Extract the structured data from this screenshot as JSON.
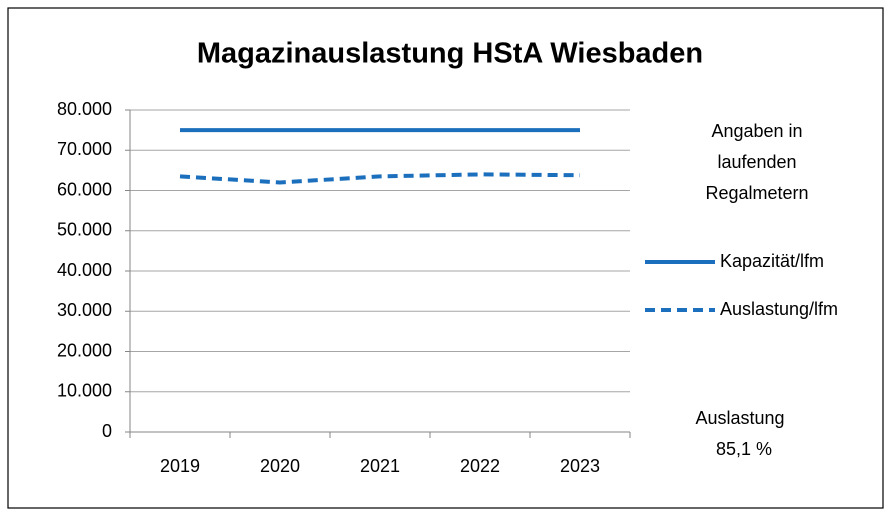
{
  "chart_data": {
    "type": "line",
    "title": "Magazinauslastung HStA Wiesbaden",
    "categories": [
      "2019",
      "2020",
      "2021",
      "2022",
      "2023"
    ],
    "series": [
      {
        "name": "Kapazität/lfm",
        "color": "#1b6fbd",
        "dashed": false,
        "values": [
          75000,
          75000,
          75000,
          75000,
          75000
        ]
      },
      {
        "name": "Auslastung/lfm",
        "color": "#1b6fbd",
        "dashed": true,
        "values": [
          63500,
          62000,
          63500,
          64000,
          63800
        ]
      }
    ],
    "ylim": [
      0,
      80000
    ],
    "yticks": [
      0,
      {
        "value": 10000,
        "label": "10.000"
      },
      {
        "value": 20000,
        "label": "20.000"
      },
      {
        "value": 30000,
        "label": "30.000"
      },
      {
        "value": 40000,
        "label": "40.000"
      },
      {
        "value": 50000,
        "label": "50.000"
      },
      {
        "value": 60000,
        "label": "60.000"
      },
      {
        "value": 70000,
        "label": "70.000"
      },
      {
        "value": 80000,
        "label": "80.000"
      }
    ],
    "grid": true,
    "legend": "right",
    "annotations": [
      {
        "lines": [
          "Angaben in",
          "laufenden",
          "Regalmetern"
        ]
      },
      {
        "lines": [
          "Auslastung",
          "85,1 %"
        ]
      }
    ]
  }
}
